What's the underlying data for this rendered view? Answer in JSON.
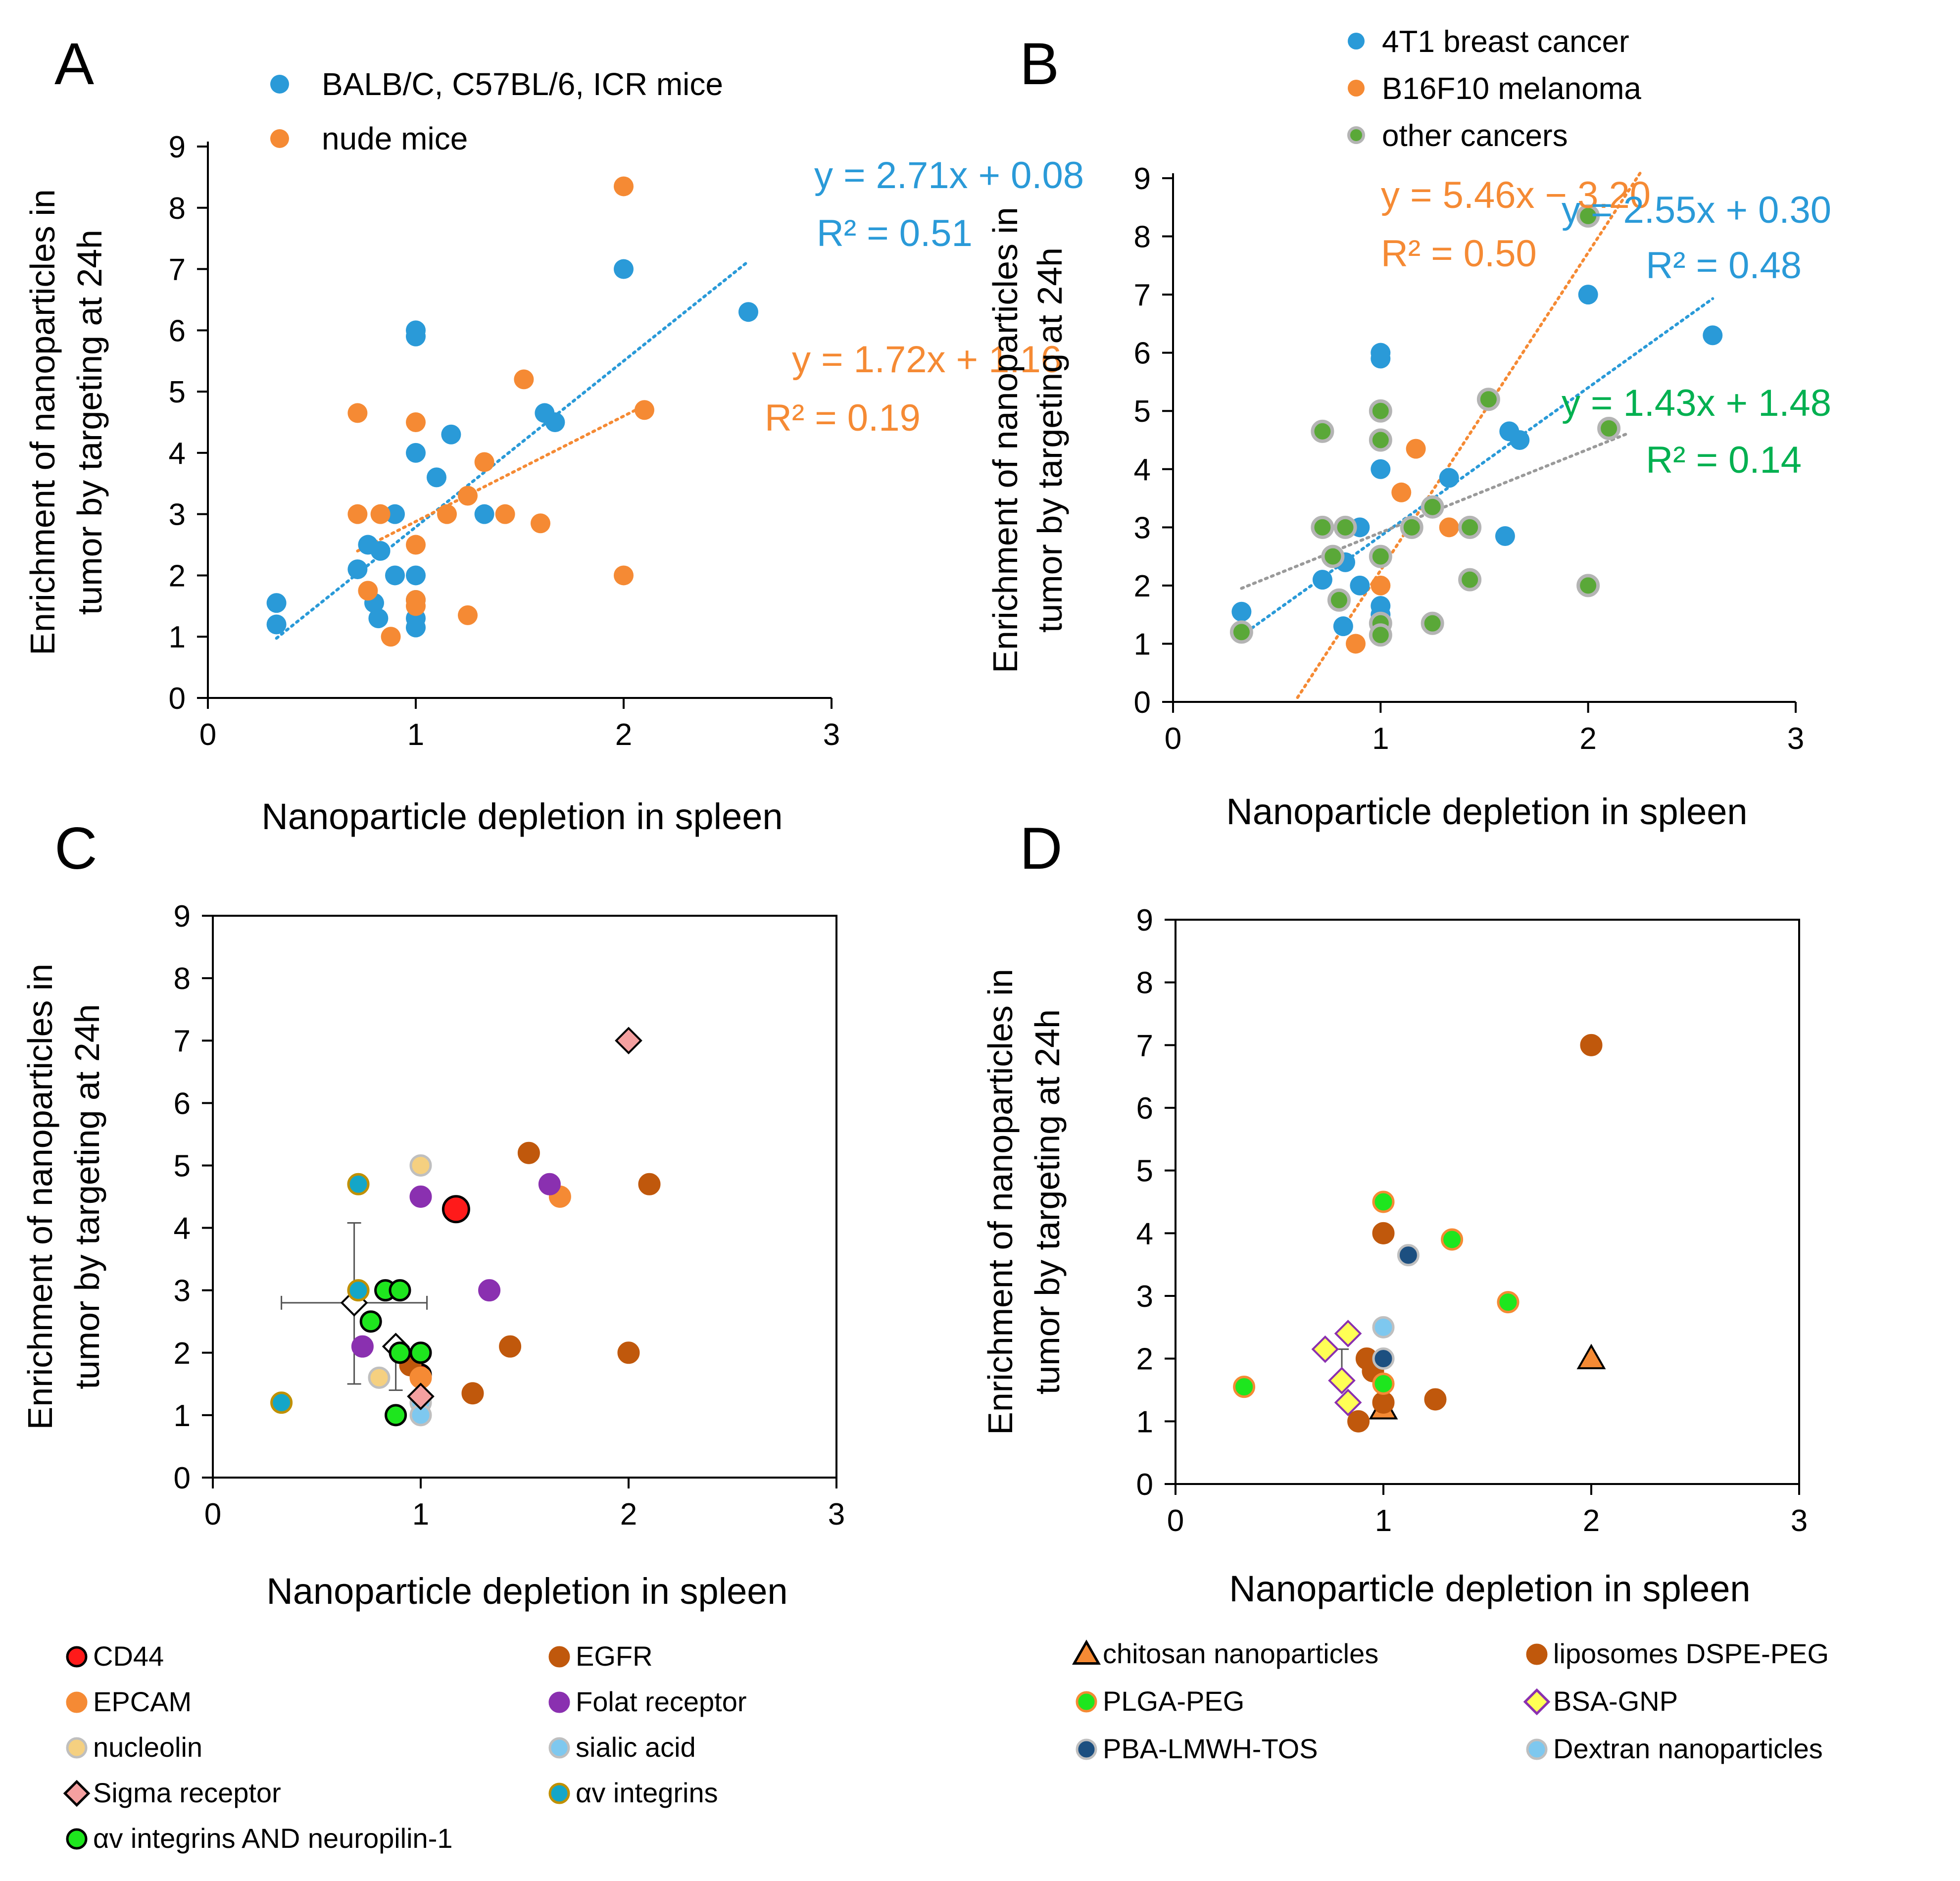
{
  "chart_data": [
    {
      "panel": "A",
      "type": "scatter",
      "xlabel": "Nanoparticle depletion in  spleen",
      "ylabel_lines": [
        "Enrichment of nanoparticles in",
        "tumor by targeting at 24h"
      ],
      "xlim": [
        0,
        3
      ],
      "ylim": [
        0,
        9
      ],
      "xticks": [
        "0",
        "1",
        "2",
        "3"
      ],
      "yticks": [
        "0",
        "1",
        "2",
        "3",
        "4",
        "5",
        "6",
        "7",
        "8",
        "9"
      ],
      "legend_position": "top",
      "series": [
        {
          "name": "BALB/C, C57BL/6, ICR mice",
          "color": "#2a9ad8",
          "style": "blue",
          "points": [
            [
              0.33,
              1.55
            ],
            [
              0.33,
              1.2
            ],
            [
              0.72,
              2.1
            ],
            [
              0.77,
              2.5
            ],
            [
              0.8,
              1.55
            ],
            [
              0.82,
              1.3
            ],
            [
              0.83,
              2.4
            ],
            [
              0.9,
              3.0
            ],
            [
              0.9,
              2.0
            ],
            [
              1.0,
              6.0
            ],
            [
              1.0,
              5.9
            ],
            [
              1.0,
              4.0
            ],
            [
              1.0,
              2.0
            ],
            [
              1.0,
              1.6
            ],
            [
              1.0,
              1.3
            ],
            [
              1.0,
              1.15
            ],
            [
              1.1,
              3.6
            ],
            [
              1.17,
              4.3
            ],
            [
              1.33,
              3.0
            ],
            [
              1.62,
              4.65
            ],
            [
              1.67,
              4.5
            ],
            [
              2.0,
              7.0
            ],
            [
              2.6,
              6.3
            ]
          ]
        },
        {
          "name": "nude mice",
          "color": "#f58a34",
          "style": "orange",
          "points": [
            [
              0.72,
              4.65
            ],
            [
              0.72,
              3.0
            ],
            [
              0.77,
              1.75
            ],
            [
              0.83,
              3.0
            ],
            [
              0.88,
              1.0
            ],
            [
              1.0,
              4.5
            ],
            [
              1.0,
              2.5
            ],
            [
              1.0,
              1.6
            ],
            [
              1.0,
              1.5
            ],
            [
              1.15,
              3.0
            ],
            [
              1.25,
              3.3
            ],
            [
              1.25,
              1.35
            ],
            [
              1.33,
              3.85
            ],
            [
              1.43,
              3.0
            ],
            [
              1.52,
              5.2
            ],
            [
              1.6,
              2.85
            ],
            [
              2.0,
              8.35
            ],
            [
              2.0,
              2.0
            ],
            [
              2.1,
              4.7
            ]
          ]
        }
      ],
      "trendlines": [
        {
          "series": "BALB/C, C57BL/6, ICR mice",
          "slope": 2.71,
          "intercept": 0.08,
          "x_range": [
            0.33,
            2.6
          ],
          "color": "#2a9ad8",
          "equation": "y = 2.71x + 0.08",
          "r2": "R² = 0.51"
        },
        {
          "series": "nude mice",
          "slope": 1.72,
          "intercept": 1.16,
          "x_range": [
            0.72,
            2.1
          ],
          "color": "#f58a34",
          "equation": "y = 1.72x + 1.16",
          "r2": "R² = 0.19"
        }
      ]
    },
    {
      "panel": "B",
      "type": "scatter",
      "xlabel": "Nanoparticle depletion in  spleen",
      "ylabel_lines": [
        "Enrichment of nanoparticles in",
        "tumor by targeting at 24h"
      ],
      "xlim": [
        0,
        3
      ],
      "ylim": [
        0,
        9
      ],
      "xticks": [
        "0",
        "1",
        "2",
        "3"
      ],
      "yticks": [
        "0",
        "1",
        "2",
        "3",
        "4",
        "5",
        "6",
        "7",
        "8",
        "9"
      ],
      "legend_position": "top",
      "series": [
        {
          "name": "4T1  breast cancer",
          "color": "#2a9ad8",
          "style": "blue",
          "points": [
            [
              0.33,
              1.55
            ],
            [
              0.72,
              2.1
            ],
            [
              0.82,
              1.3
            ],
            [
              0.83,
              2.4
            ],
            [
              0.9,
              3.0
            ],
            [
              0.9,
              2.0
            ],
            [
              1.0,
              6.0
            ],
            [
              1.0,
              5.9
            ],
            [
              1.0,
              4.0
            ],
            [
              1.0,
              1.65
            ],
            [
              1.0,
              1.5
            ],
            [
              1.33,
              3.85
            ],
            [
              1.6,
              2.85
            ],
            [
              1.62,
              4.65
            ],
            [
              1.67,
              4.5
            ],
            [
              2.0,
              7.0
            ],
            [
              2.6,
              6.3
            ]
          ]
        },
        {
          "name": "B16F10 melanoma",
          "color": "#f58a34",
          "style": "orange",
          "points": [
            [
              0.88,
              1.0
            ],
            [
              1.0,
              2.0
            ],
            [
              1.1,
              3.6
            ],
            [
              1.17,
              4.35
            ],
            [
              1.33,
              3.0
            ]
          ]
        },
        {
          "name": "other cancers",
          "color": "#58a840",
          "style": "green",
          "points": [
            [
              0.33,
              1.2
            ],
            [
              0.72,
              4.65
            ],
            [
              0.72,
              3.0
            ],
            [
              0.77,
              2.5
            ],
            [
              0.8,
              1.75
            ],
            [
              0.83,
              3.0
            ],
            [
              1.0,
              5.0
            ],
            [
              1.0,
              4.5
            ],
            [
              1.0,
              2.5
            ],
            [
              1.0,
              1.35
            ],
            [
              1.0,
              1.15
            ],
            [
              1.15,
              3.0
            ],
            [
              1.25,
              3.35
            ],
            [
              1.25,
              1.35
            ],
            [
              1.43,
              3.0
            ],
            [
              1.43,
              2.1
            ],
            [
              1.52,
              5.2
            ],
            [
              2.0,
              8.35
            ],
            [
              2.0,
              2.0
            ],
            [
              2.1,
              4.7
            ]
          ]
        }
      ],
      "trendlines": [
        {
          "series": "B16F10 melanoma",
          "slope": 5.46,
          "intercept": -3.2,
          "x_range": [
            0.6,
            2.25
          ],
          "color": "#f58a34",
          "equation": "y = 5.46x − 3.20",
          "r2": "R² = 0.50"
        },
        {
          "series": "4T1  breast cancer",
          "slope": 2.55,
          "intercept": 0.3,
          "x_range": [
            0.33,
            2.6
          ],
          "color": "#2a9ad8",
          "equation": "y = 2.55x + 0.30",
          "r2": "R² = 0.48"
        },
        {
          "series": "other cancers",
          "slope": 1.43,
          "intercept": 1.48,
          "x_range": [
            0.33,
            2.2
          ],
          "color": "#9a9a9a",
          "equation": "y = 1.43x + 1.48",
          "r2": "R² = 0.14",
          "text_color": "#00b050"
        }
      ]
    },
    {
      "panel": "C",
      "type": "scatter",
      "xlabel": "Nanoparticle depletion in  spleen",
      "ylabel_lines": [
        "Enrichment of nanoparticles in",
        "tumor by targeting at 24h"
      ],
      "xlim": [
        0,
        3
      ],
      "ylim": [
        0,
        9
      ],
      "xticks": [
        "0",
        "1",
        "2",
        "3"
      ],
      "yticks": [
        "0",
        "1",
        "2",
        "3",
        "4",
        "5",
        "6",
        "7",
        "8",
        "9"
      ],
      "legend_position": "bottom",
      "series": [
        {
          "name": "CD44",
          "fill": "#ff1a1a",
          "stroke": "#000000",
          "shape": "circle",
          "points": [
            [
              1.17,
              4.3
            ],
            [
              1.0,
              1.65
            ]
          ]
        },
        {
          "name": "EGFR",
          "fill": "#c0580c",
          "stroke": "#c0580c",
          "shape": "circle",
          "points": [
            [
              1.52,
              5.2
            ],
            [
              2.1,
              4.7
            ],
            [
              1.43,
              2.1
            ],
            [
              1.25,
              1.35
            ],
            [
              2.0,
              2.0
            ],
            [
              0.95,
              1.8
            ]
          ]
        },
        {
          "name": "EPCAM",
          "fill": "#f58a34",
          "stroke": "#f58a34",
          "shape": "circle",
          "points": [
            [
              1.67,
              4.5
            ],
            [
              1.0,
              1.6
            ]
          ]
        },
        {
          "name": "Folat receptor",
          "fill": "#8a30b0",
          "stroke": "#8a30b0",
          "shape": "circle",
          "points": [
            [
              1.0,
              4.5
            ],
            [
              1.62,
              4.7
            ],
            [
              1.33,
              3.0
            ],
            [
              0.72,
              2.1
            ]
          ]
        },
        {
          "name": "nucleolin",
          "fill": "#f5d080",
          "stroke": "#bfbfbf",
          "shape": "circle",
          "points": [
            [
              1.0,
              5.0
            ],
            [
              0.8,
              1.6
            ]
          ]
        },
        {
          "name": "sialic acid",
          "fill": "#7ec8ef",
          "stroke": "#bfbfbf",
          "shape": "circle",
          "points": [
            [
              1.0,
              1.2
            ],
            [
              1.0,
              1.0
            ]
          ]
        },
        {
          "name": "Sigma receptor",
          "fill": "#f4a0a0",
          "stroke": "#000000",
          "shape": "diamond",
          "points": [
            [
              2.0,
              7.0
            ],
            [
              1.0,
              1.3
            ]
          ]
        },
        {
          "name": "open diamond (mean)",
          "fill": "#ffffff",
          "stroke": "#000000",
          "shape": "diamond",
          "points": [
            [
              0.68,
              2.8
            ],
            [
              0.88,
              2.1
            ]
          ],
          "in_legend": false
        },
        {
          "name": "αv integrins",
          "fill": "#14a6c8",
          "stroke": "#c09000",
          "shape": "circle",
          "points": [
            [
              0.33,
              1.2
            ],
            [
              0.7,
              4.7
            ],
            [
              0.7,
              3.0
            ]
          ]
        },
        {
          "name": "αv integrins AND neuropilin-1",
          "fill": "#1ee61e",
          "stroke": "#000000",
          "shape": "circle",
          "points": [
            [
              0.83,
              3.0
            ],
            [
              0.9,
              3.0
            ],
            [
              0.76,
              2.5
            ],
            [
              0.9,
              2.0
            ],
            [
              1.0,
              2.0
            ],
            [
              0.88,
              1.0
            ]
          ]
        }
      ],
      "error_bars": [
        {
          "x": 0.68,
          "y": 2.8,
          "xerr": 0.35,
          "yerr_low": 1.3,
          "yerr_high": 1.28
        },
        {
          "x": 0.88,
          "y": 2.1,
          "xerr": 0.0,
          "yerr_low": 0.7,
          "yerr_high": 0.0
        }
      ]
    },
    {
      "panel": "D",
      "type": "scatter",
      "xlabel": "Nanoparticle depletion in  spleen",
      "ylabel_lines": [
        "Enrichment of nanoparticles in",
        "tumor by targeting at 24h"
      ],
      "xlim": [
        0,
        3
      ],
      "ylim": [
        0,
        9
      ],
      "xticks": [
        "0",
        "1",
        "2",
        "3"
      ],
      "yticks": [
        "0",
        "1",
        "2",
        "3",
        "4",
        "5",
        "6",
        "7",
        "8",
        "9"
      ],
      "legend_position": "bottom",
      "series": [
        {
          "name": "chitosan nanoparticles",
          "fill": "#f58a34",
          "stroke": "#000000",
          "shape": "triangle",
          "points": [
            [
              2.0,
              2.0
            ],
            [
              1.0,
              1.2
            ]
          ]
        },
        {
          "name": "liposomes DSPE-PEG",
          "fill": "#c0580c",
          "stroke": "#c0580c",
          "shape": "circle",
          "points": [
            [
              2.0,
              7.0
            ],
            [
              1.0,
              4.0
            ],
            [
              0.92,
              2.0
            ],
            [
              0.95,
              1.8
            ],
            [
              1.0,
              1.3
            ],
            [
              1.25,
              1.35
            ],
            [
              0.88,
              1.0
            ]
          ]
        },
        {
          "name": "PLGA-PEG",
          "fill": "#1ee61e",
          "stroke": "#f58a34",
          "shape": "circle",
          "points": [
            [
              1.0,
              4.5
            ],
            [
              1.33,
              3.9
            ],
            [
              1.6,
              2.9
            ],
            [
              0.33,
              1.55
            ],
            [
              1.0,
              1.6
            ]
          ]
        },
        {
          "name": "BSA-GNP",
          "fill": "#ffff55",
          "stroke": "#8a30b0",
          "shape": "diamond",
          "points": [
            [
              0.72,
              2.15
            ],
            [
              0.83,
              2.4
            ],
            [
              0.8,
              1.65
            ],
            [
              0.83,
              1.3
            ]
          ]
        },
        {
          "name": "PBA-LMWH-TOS",
          "fill": "#1c4f80",
          "stroke": "#bfbfbf",
          "shape": "circle",
          "points": [
            [
              1.12,
              3.65
            ],
            [
              1.0,
              2.0
            ]
          ]
        },
        {
          "name": "Dextran nanoparticles",
          "fill": "#7ec8ef",
          "stroke": "#bfbfbf",
          "shape": "circle",
          "points": [
            [
              1.0,
              2.5
            ]
          ]
        }
      ],
      "error_bars": [
        {
          "x": 0.8,
          "y": 1.65,
          "xerr": 0.0,
          "yerr_low": 0.0,
          "yerr_high": 0.5
        }
      ]
    }
  ],
  "panel_labels": [
    "A",
    "B",
    "C",
    "D"
  ]
}
